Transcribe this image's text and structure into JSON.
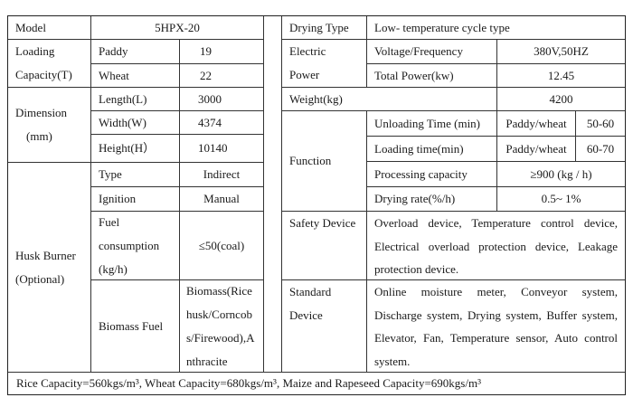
{
  "left": {
    "model": {
      "label": "Model",
      "value": "5HPX-20"
    },
    "loading_capacity": {
      "label_line1": "Loading",
      "label_line2": "Capacity(T)",
      "rows": [
        {
          "label": "Paddy",
          "value": "19"
        },
        {
          "label": "Wheat",
          "value": "22"
        }
      ]
    },
    "dimension": {
      "label_line1": "Dimension",
      "label_line2": "(mm)",
      "rows": [
        {
          "label": "Length(L)",
          "value": "3000"
        },
        {
          "label": "Width(W)",
          "value": "4374"
        },
        {
          "label": "Height(H）",
          "value": "10140"
        }
      ]
    },
    "husk_burner": {
      "label_line1": "Husk Burner",
      "label_line2": "(Optional)",
      "type": {
        "label": "Type",
        "value": "Indirect"
      },
      "ignition": {
        "label": "Ignition",
        "value": "Manual"
      },
      "fuel": {
        "label_line1": "Fuel",
        "label_line2": "consumption",
        "label_line3": "(kg/h)",
        "value": "≤50(coal)"
      },
      "biomass": {
        "label": "Biomass Fuel",
        "value_line1": "Biomass(Rice",
        "value_line2": "husk/Corncob",
        "value_line3": "s/Firewood),A",
        "value_line4": "nthracite"
      }
    }
  },
  "right": {
    "drying_type": {
      "label": "Drying Type",
      "value": "Low- temperature cycle type"
    },
    "electric_power": {
      "label_line1": "Electric",
      "label_line2": "Power",
      "rows": [
        {
          "label": "Voltage/Frequency",
          "value": "380V,50HZ"
        },
        {
          "label": "Total Power(kw)",
          "value": "12.45"
        }
      ]
    },
    "weight": {
      "label": "Weight(kg)",
      "value": "4200"
    },
    "function": {
      "label": "Function",
      "unloading": {
        "label": "Unloading Time (min)",
        "grain": "Paddy/wheat",
        "value": "50-60"
      },
      "loading": {
        "label": "Loading time(min)",
        "grain": "Paddy/wheat",
        "value": "60-70"
      },
      "processing": {
        "label": "Processing capacity",
        "value": "≥900 (kg / h)"
      },
      "drying_rate": {
        "label": "Drying rate(%/h)",
        "value": "0.5~ 1%"
      }
    },
    "safety": {
      "label": "Safety Device",
      "value": "Overload device, Temperature control device, Electrical overload protection device, Leakage protection device."
    },
    "standard": {
      "label_line1": "Standard",
      "label_line2": "Device",
      "value": "Online moisture meter, Conveyor system, Discharge system, Drying system, Buffer system, Elevator, Fan, Temperature sensor, Auto control system."
    }
  },
  "footer": "Rice Capacity=560kgs/m³, Wheat Capacity=680kgs/m³, Maize and Rapeseed Capacity=690kgs/m³"
}
